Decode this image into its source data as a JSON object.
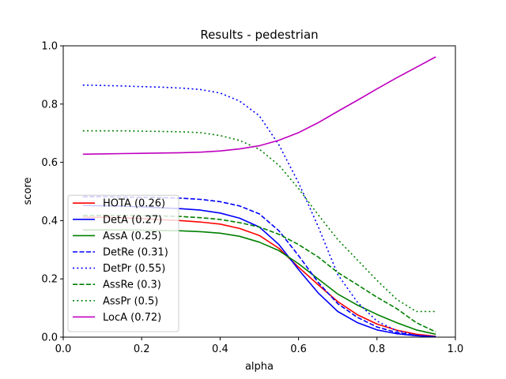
{
  "chart_data": {
    "type": "line",
    "title": "Results - pedestrian",
    "xlabel": "alpha",
    "ylabel": "score",
    "xlim": [
      0.0,
      1.0
    ],
    "ylim": [
      0.0,
      1.0
    ],
    "xticks": [
      "0.0",
      "0.2",
      "0.4",
      "0.6",
      "0.8",
      "1.0"
    ],
    "yticks": [
      "0.0",
      "0.2",
      "0.4",
      "0.6",
      "0.8",
      "1.0"
    ],
    "grid": false,
    "legend_position": "lower-left",
    "x": [
      0.05,
      0.1,
      0.15,
      0.2,
      0.25,
      0.3,
      0.35,
      0.4,
      0.45,
      0.5,
      0.55,
      0.6,
      0.65,
      0.7,
      0.75,
      0.8,
      0.85,
      0.9,
      0.95
    ],
    "series": [
      {
        "name": "HOTA (0.26)",
        "color": "#ff0000",
        "style": "solid",
        "values": [
          0.412,
          0.411,
          0.41,
          0.407,
          0.403,
          0.4,
          0.395,
          0.388,
          0.373,
          0.349,
          0.305,
          0.24,
          0.18,
          0.122,
          0.077,
          0.045,
          0.024,
          0.01,
          0.003
        ]
      },
      {
        "name": "DetA (0.27)",
        "color": "#0000ff",
        "style": "solid",
        "values": [
          0.452,
          0.451,
          0.45,
          0.447,
          0.444,
          0.441,
          0.436,
          0.426,
          0.408,
          0.378,
          0.318,
          0.232,
          0.152,
          0.088,
          0.05,
          0.025,
          0.012,
          0.005,
          0.001
        ]
      },
      {
        "name": "AssA (0.25)",
        "color": "#008000",
        "style": "solid",
        "values": [
          0.368,
          0.368,
          0.368,
          0.367,
          0.366,
          0.365,
          0.362,
          0.357,
          0.346,
          0.326,
          0.297,
          0.252,
          0.2,
          0.148,
          0.11,
          0.078,
          0.05,
          0.025,
          0.01
        ]
      },
      {
        "name": "DetRe (0.31)",
        "color": "#0000ff",
        "style": "dashed",
        "values": [
          0.482,
          0.482,
          0.481,
          0.48,
          0.479,
          0.477,
          0.473,
          0.465,
          0.45,
          0.423,
          0.365,
          0.28,
          0.188,
          0.115,
          0.068,
          0.035,
          0.016,
          0.006,
          0.001
        ]
      },
      {
        "name": "DetPr (0.55)",
        "color": "#0000ff",
        "style": "dotted",
        "values": [
          0.865,
          0.864,
          0.862,
          0.86,
          0.858,
          0.855,
          0.85,
          0.838,
          0.81,
          0.76,
          0.66,
          0.53,
          0.38,
          0.215,
          0.12,
          0.055,
          0.022,
          0.006,
          0.001
        ]
      },
      {
        "name": "AssRe (0.3)",
        "color": "#008000",
        "style": "dashed",
        "values": [
          0.418,
          0.418,
          0.418,
          0.417,
          0.416,
          0.414,
          0.41,
          0.404,
          0.393,
          0.378,
          0.353,
          0.318,
          0.275,
          0.222,
          0.18,
          0.137,
          0.098,
          0.05,
          0.018
        ]
      },
      {
        "name": "AssPr (0.5)",
        "color": "#008000",
        "style": "dotted",
        "values": [
          0.708,
          0.708,
          0.708,
          0.707,
          0.706,
          0.705,
          0.702,
          0.692,
          0.675,
          0.645,
          0.59,
          0.51,
          0.42,
          0.335,
          0.265,
          0.195,
          0.13,
          0.088,
          0.088
        ]
      },
      {
        "name": "LocA (0.72)",
        "color": "#bf00bf",
        "style": "solid",
        "values": [
          0.628,
          0.629,
          0.63,
          0.631,
          0.632,
          0.633,
          0.635,
          0.639,
          0.646,
          0.657,
          0.676,
          0.702,
          0.736,
          0.775,
          0.813,
          0.852,
          0.89,
          0.926,
          0.962
        ]
      }
    ]
  }
}
